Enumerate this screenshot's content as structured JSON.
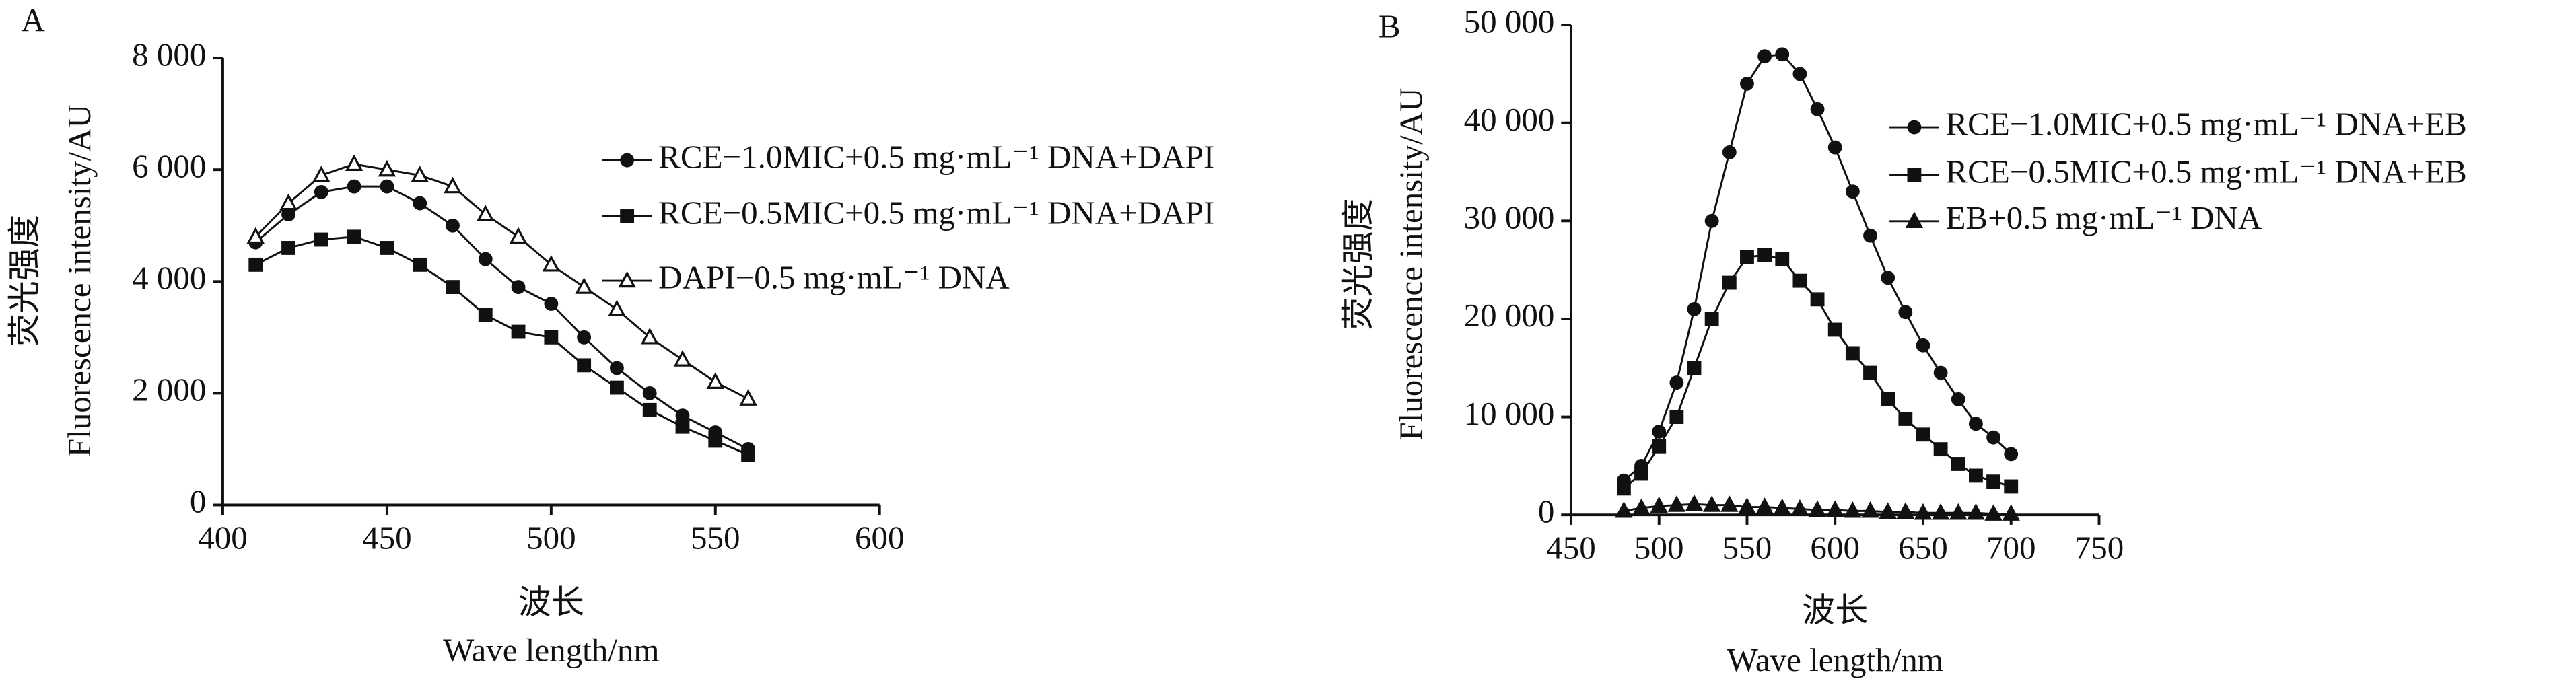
{
  "chart_data": [
    {
      "type": "line",
      "panel_label": "A",
      "ylabel_cn": "荧光强度",
      "ylabel": "Fluorescence intensity/AU",
      "xlabel_cn": "波长",
      "xlabel": "Wave length/nm",
      "x": [
        410,
        420,
        430,
        440,
        450,
        460,
        470,
        480,
        490,
        500,
        510,
        520,
        530,
        540,
        550,
        560
      ],
      "series": [
        {
          "name": "RCE−1.0MIC+0.5 mg·mL⁻¹ DNA+DAPI",
          "color": "#111111",
          "marker": "circle",
          "filled": true,
          "values": [
            4700,
            5200,
            5600,
            5700,
            5700,
            5400,
            5000,
            4400,
            3900,
            3600,
            3000,
            2450,
            2000,
            1600,
            1300,
            1000
          ]
        },
        {
          "name": "RCE−0.5MIC+0.5 mg·mL⁻¹ DNA+DAPI",
          "color": "#111111",
          "marker": "square",
          "filled": true,
          "values": [
            4300,
            4600,
            4750,
            4800,
            4600,
            4300,
            3900,
            3400,
            3100,
            3000,
            2500,
            2100,
            1700,
            1400,
            1150,
            900
          ]
        },
        {
          "name": "DAPI−0.5 mg·mL⁻¹ DNA",
          "color": "#111111",
          "marker": "triangle",
          "filled": false,
          "values": [
            4800,
            5400,
            5900,
            6100,
            6000,
            5900,
            5700,
            5200,
            4800,
            4300,
            3900,
            3500,
            3000,
            2600,
            2200,
            1900
          ]
        }
      ],
      "xlim": [
        400,
        600
      ],
      "xticks": [
        400,
        450,
        500,
        550,
        600
      ],
      "ylim": [
        0,
        8000
      ],
      "yticks": [
        0,
        {
          "value": 2000,
          "label": "2 000"
        },
        {
          "value": 4000,
          "label": "4 000"
        },
        {
          "value": 6000,
          "label": "6 000"
        },
        {
          "value": 8000,
          "label": "8 000"
        }
      ]
    },
    {
      "type": "line",
      "panel_label": "B",
      "ylabel_cn": "荧光强度",
      "ylabel": "Fluorescence intensity/AU",
      "xlabel_cn": "波长",
      "xlabel": "Wave length/nm",
      "x": [
        480,
        490,
        500,
        510,
        520,
        530,
        540,
        550,
        560,
        570,
        580,
        590,
        600,
        610,
        620,
        630,
        640,
        650,
        660,
        670,
        680,
        690,
        700
      ],
      "series": [
        {
          "name": "RCE−1.0MIC+0.5 mg·mL⁻¹ DNA+EB",
          "color": "#111111",
          "marker": "circle",
          "filled": true,
          "values": [
            3500,
            5000,
            8500,
            13500,
            21000,
            30000,
            37000,
            44000,
            46800,
            47000,
            45000,
            41400,
            37500,
            33000,
            28500,
            24200,
            20700,
            17300,
            14500,
            11800,
            9300,
            7900,
            6200
          ]
        },
        {
          "name": "RCE−0.5MIC+0.5 mg·mL⁻¹ DNA+EB",
          "color": "#111111",
          "marker": "square",
          "filled": true,
          "values": [
            2700,
            4200,
            7000,
            10000,
            15000,
            20000,
            23700,
            26300,
            26500,
            26100,
            23900,
            22000,
            18900,
            16500,
            14500,
            11800,
            9800,
            8200,
            6700,
            5200,
            4000,
            3400,
            2900
          ]
        },
        {
          "name": "EB+0.5 mg·mL⁻¹ DNA",
          "color": "#111111",
          "marker": "triangle",
          "filled": true,
          "values": [
            400,
            700,
            900,
            1000,
            1100,
            1000,
            1000,
            800,
            800,
            700,
            600,
            500,
            500,
            400,
            400,
            300,
            300,
            200,
            200,
            200,
            200,
            100,
            100
          ]
        }
      ],
      "xlim": [
        450,
        750
      ],
      "xticks": [
        450,
        500,
        550,
        600,
        650,
        700,
        750
      ],
      "ylim": [
        0,
        50000
      ],
      "yticks": [
        0,
        {
          "value": 10000,
          "label": "10 000"
        },
        {
          "value": 20000,
          "label": "20 000"
        },
        {
          "value": 30000,
          "label": "30 000"
        },
        {
          "value": 40000,
          "label": "40 000"
        },
        {
          "value": 50000,
          "label": "50 000"
        }
      ]
    }
  ]
}
